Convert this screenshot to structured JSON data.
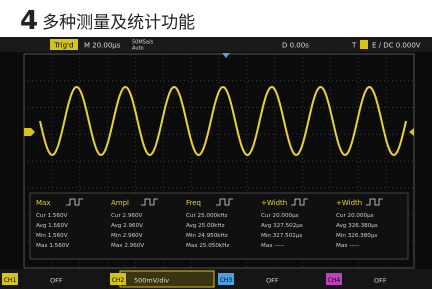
{
  "header": {
    "number": "4",
    "title": "多种测量及统计功能"
  },
  "top_bar": {
    "status": "Trig'd",
    "timebase": "M 20.00μs",
    "sample_rate": "50MSa/s",
    "acquire": "Auto",
    "delay": "D 0.00s",
    "trigger": "T",
    "trigger_setting": "E / DC 0.000V"
  },
  "measurements": [
    {
      "name": "Max",
      "rows": [
        "Cur 1.560V",
        "Avg 1.560V",
        "Min 1.560V",
        "Max 1.560V"
      ]
    },
    {
      "name": "Ampl",
      "rows": [
        "Cur 2.960V",
        "Avg 2.960V",
        "Min 2.960V",
        "Max 2.960V"
      ]
    },
    {
      "name": "Freq",
      "rows": [
        "Cur 25.000kHz",
        "Avg 25.00kHz",
        "Min 24.950kHz",
        "Max 25.050kHz"
      ]
    },
    {
      "name": "+Width",
      "rows": [
        "Cur 20.000μs",
        "Avg 327.502μs",
        "Min 327.502μs",
        "Max -----"
      ]
    },
    {
      "name": "+Width",
      "rows": [
        "Cur 20.000μs",
        "Avg 326.380μs",
        "Min 326.380μs",
        "Max -----"
      ]
    }
  ],
  "channels": [
    {
      "name": "CH1",
      "state": "OFF"
    },
    {
      "name": "CH2",
      "state": "500mV/div"
    },
    {
      "name": "CH3",
      "state": "OFF"
    },
    {
      "name": "CH4",
      "state": "OFF"
    }
  ]
}
